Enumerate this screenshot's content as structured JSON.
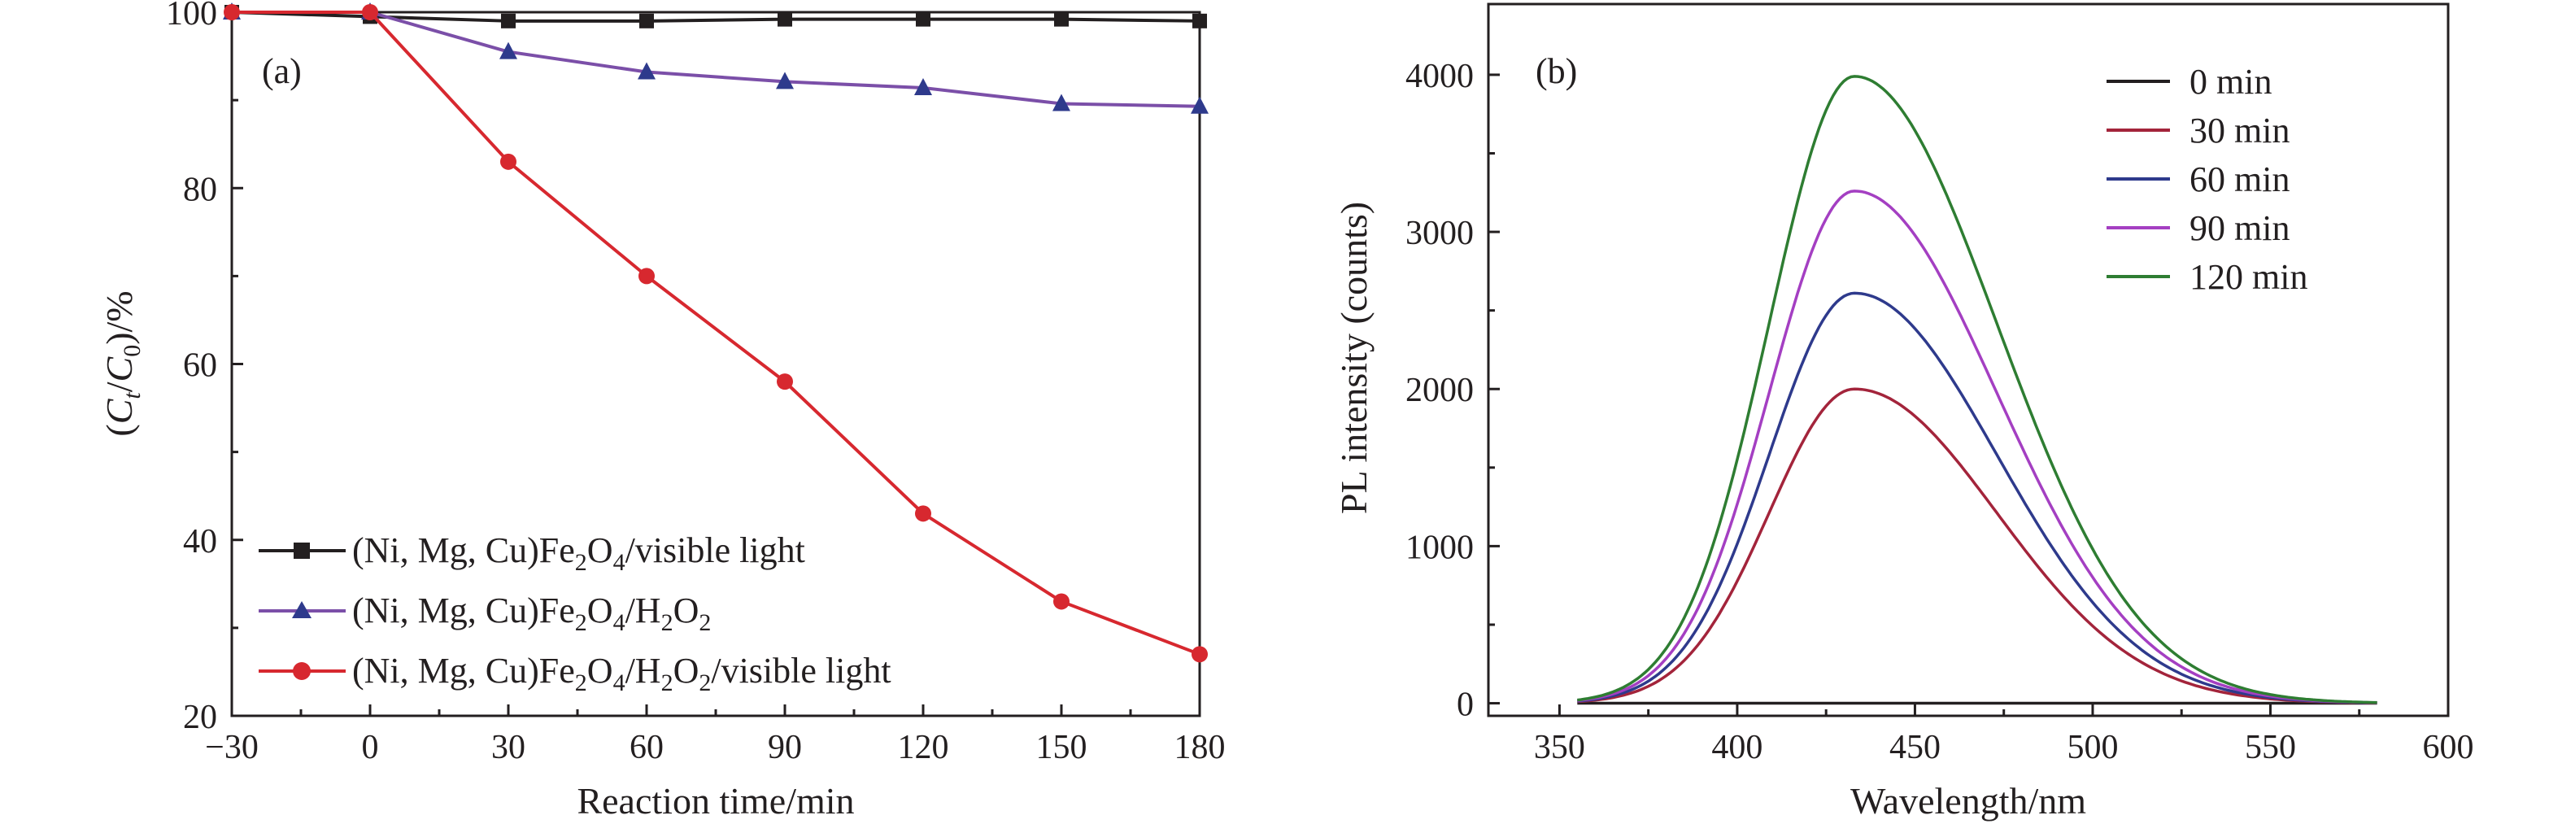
{
  "chart_data": [
    {
      "panel": "(a)",
      "type": "line",
      "xlabel": "Reaction time/min",
      "ylabel": "(Ct/C0)/%",
      "ylabel_parts": {
        "open": "(",
        "c1": "C",
        "sub1": "t",
        "slash": "/",
        "c2": "C",
        "sub2": "0",
        "close": ")/%"
      },
      "xlim": [
        -30,
        180
      ],
      "ylim": [
        20,
        100
      ],
      "xticks": [
        -30,
        0,
        30,
        60,
        90,
        120,
        150,
        180
      ],
      "xtick_labels": [
        "−30",
        "0",
        "30",
        "60",
        "90",
        "120",
        "150",
        "180"
      ],
      "yticks": [
        20,
        40,
        60,
        80,
        100
      ],
      "ytick_labels": [
        "20",
        "40",
        "60",
        "80",
        "100"
      ],
      "legend_position": "lower-left",
      "x": [
        -30,
        0,
        30,
        60,
        90,
        120,
        150,
        180
      ],
      "series": [
        {
          "name": "(Ni, Mg, Cu)Fe2O4/visible light",
          "name_parts": {
            "a": "(Ni, Mg, Cu)Fe",
            "s1": "2",
            "b": "O",
            "s2": "4",
            "c": "/visible light"
          },
          "marker": "square",
          "color": "#231f20",
          "values": [
            100,
            99.5,
            99,
            99,
            99.2,
            99.2,
            99.2,
            99
          ]
        },
        {
          "name": "(Ni, Mg, Cu)Fe2O4/H2O2",
          "name_parts": {
            "a": "(Ni, Mg, Cu)Fe",
            "s1": "2",
            "b": "O",
            "s2": "4",
            "c": "/H",
            "s3": "2",
            "d": "O",
            "s4": "2"
          },
          "marker": "triangle",
          "color": "#2e3a8c",
          "line_color": "#7b4fa8",
          "values": [
            100,
            100,
            95.5,
            93.2,
            92.1,
            91.4,
            89.6,
            89.3
          ]
        },
        {
          "name": "(Ni, Mg, Cu)Fe2O4/H2O2/visible light",
          "name_parts": {
            "a": "(Ni, Mg, Cu)Fe",
            "s1": "2",
            "b": "O",
            "s2": "4",
            "c": "/H",
            "s3": "2",
            "d": "O",
            "s4": "2",
            "e": "/visible light"
          },
          "marker": "circle",
          "color": "#d7282f",
          "values": [
            100,
            100,
            83,
            70,
            58,
            43,
            33,
            27
          ]
        }
      ]
    },
    {
      "panel": "(b)",
      "type": "line",
      "xlabel": "Wavelength/nm",
      "ylabel": "PL intensity (counts)",
      "xlim": [
        330,
        600
      ],
      "ylim": [
        -80,
        4450
      ],
      "xticks": [
        350,
        400,
        450,
        500,
        550,
        600
      ],
      "xtick_labels": [
        "350",
        "400",
        "450",
        "500",
        "550",
        "600"
      ],
      "yticks": [
        0,
        1000,
        2000,
        3000,
        4000
      ],
      "ytick_labels": [
        "0",
        "1000",
        "2000",
        "3000",
        "4000"
      ],
      "legend_position": "top-right",
      "peak_wavelength": 433,
      "curve_range": [
        355,
        580
      ],
      "series": [
        {
          "name": "0 min",
          "color": "#231f20",
          "peak": 0
        },
        {
          "name": "30 min",
          "color": "#a3243b",
          "peak": 2000
        },
        {
          "name": "60 min",
          "color": "#2e3a8c",
          "peak": 2610
        },
        {
          "name": "90 min",
          "color": "#a43fc2",
          "peak": 3260
        },
        {
          "name": "120 min",
          "color": "#2e7d32",
          "peak": 3990
        }
      ]
    }
  ]
}
